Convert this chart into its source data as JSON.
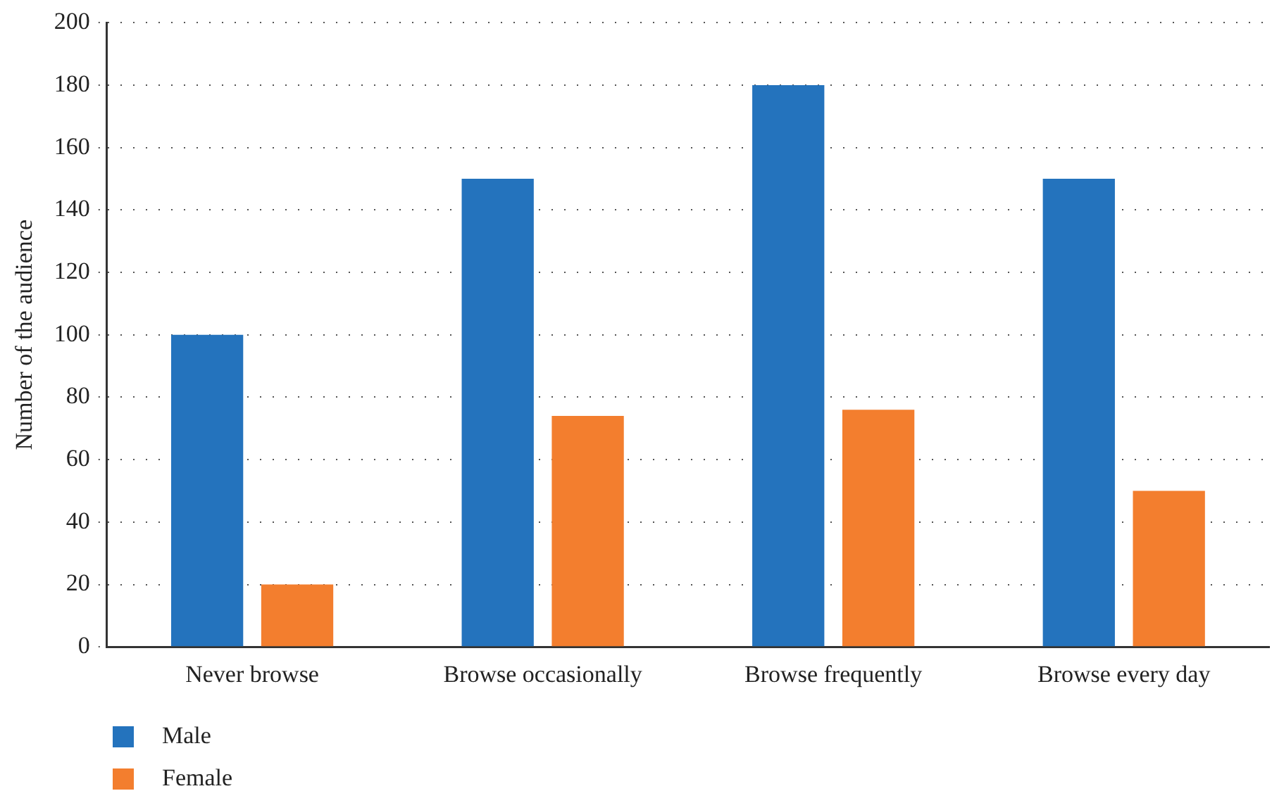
{
  "chart_data": {
    "type": "bar",
    "ylabel": "Number of the audience",
    "categories": [
      "Never browse",
      "Browse occasionally",
      "Browse frequently",
      "Browse every day"
    ],
    "series": [
      {
        "name": "Male",
        "color": "#2473bd",
        "values": [
          100,
          150,
          180,
          150
        ]
      },
      {
        "name": "Female",
        "color": "#f37e2e",
        "values": [
          20,
          74,
          76,
          50
        ]
      }
    ],
    "ylim": [
      0,
      200
    ],
    "yticks": [
      0,
      20,
      40,
      60,
      80,
      100,
      120,
      140,
      160,
      180,
      200
    ],
    "grid": "y",
    "legend": "bottom left"
  }
}
